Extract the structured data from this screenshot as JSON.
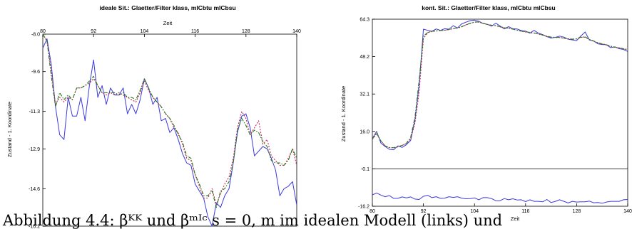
{
  "caption": "Abbildung 4.4:  βᴷᴷ  und  βᵐᴵᶜ  s = 0,  m im idealen Modell (links) und",
  "colors": {
    "raw": "#3a3adb",
    "filter1": "#cc2255",
    "filter2": "#1f7a1f",
    "axes": "#000000"
  },
  "chart_data": [
    {
      "type": "line",
      "title": "ideale Sit.: Glaetter/Filter klass,  mICbtu mICbsu",
      "xlabel": "Zeit",
      "ylabel": "Zustand - 1. Koordinate",
      "x_axis_position": "top",
      "xlim": [
        80,
        140
      ],
      "ylim": [
        -16.2,
        -8.0
      ],
      "xticks": [
        "80",
        "92",
        "104",
        "116",
        "128",
        "140"
      ],
      "yticks": [
        "-8.0",
        "-9.6",
        "-11.3",
        "-12.9",
        "-14.6",
        "-16.2"
      ],
      "x": [
        80,
        81,
        82,
        83,
        84,
        85,
        86,
        87,
        88,
        89,
        90,
        91,
        92,
        93,
        94,
        95,
        96,
        97,
        98,
        99,
        100,
        101,
        102,
        103,
        104,
        105,
        106,
        107,
        108,
        109,
        110,
        111,
        112,
        113,
        114,
        115,
        116,
        117,
        118,
        119,
        120,
        121,
        122,
        123,
        124,
        125,
        126,
        127,
        128,
        129,
        130,
        131,
        132,
        133,
        134,
        135,
        136,
        137,
        138,
        139,
        140
      ],
      "series": [
        {
          "values": [
            -8.6,
            -8.2,
            -9.3,
            -11.1,
            -12.3,
            -12.5,
            -10.7,
            -11.5,
            -11.5,
            -10.7,
            -11.7,
            -10.2,
            -9.1,
            -10.7,
            -10.2,
            -11.0,
            -10.3,
            -10.6,
            -10.6,
            -10.3,
            -11.4,
            -11.0,
            -11.4,
            -10.8,
            -9.9,
            -10.3,
            -11.0,
            -10.7,
            -11.7,
            -11.6,
            -12.2,
            -12.0,
            -12.5,
            -13.1,
            -13.5,
            -13.6,
            -14.4,
            -14.7,
            -15.0,
            -15.8,
            -16.2,
            -15.2,
            -15.4,
            -14.9,
            -14.6,
            -13.5,
            -12.2,
            -11.5,
            -11.4,
            -12.0,
            -13.2,
            -13.0,
            -12.8,
            -12.9,
            -13.3,
            -13.8,
            -14.9,
            -14.6,
            -14.5,
            -14.3,
            -15.3
          ]
        },
        {
          "values": [
            -8.0,
            -8.3,
            -9.6,
            -11.0,
            -10.7,
            -10.9,
            -10.7,
            -10.8,
            -10.3,
            -10.3,
            -10.2,
            -10.1,
            -9.9,
            -10.2,
            -10.5,
            -10.6,
            -10.5,
            -10.6,
            -10.5,
            -10.6,
            -10.7,
            -10.8,
            -10.9,
            -10.5,
            -10.0,
            -10.4,
            -10.7,
            -10.9,
            -11.1,
            -11.4,
            -11.6,
            -12.0,
            -12.2,
            -12.7,
            -13.3,
            -13.4,
            -14.0,
            -14.5,
            -15.0,
            -15.0,
            -14.6,
            -15.3,
            -14.8,
            -14.4,
            -14.1,
            -13.3,
            -12.0,
            -11.3,
            -11.6,
            -12.3,
            -12.0,
            -11.7,
            -12.7,
            -12.5,
            -13.2,
            -13.4,
            -13.6,
            -13.6,
            -13.3,
            -12.9,
            -13.6
          ]
        },
        {
          "values": [
            -8.0,
            -8.3,
            -9.8,
            -11.1,
            -10.5,
            -10.8,
            -10.6,
            -10.8,
            -10.3,
            -10.3,
            -10.2,
            -10.0,
            -9.8,
            -10.2,
            -10.5,
            -10.5,
            -10.5,
            -10.5,
            -10.6,
            -10.5,
            -10.7,
            -10.7,
            -10.8,
            -10.4,
            -9.9,
            -10.3,
            -10.7,
            -10.9,
            -11.1,
            -11.4,
            -11.6,
            -11.9,
            -12.3,
            -12.6,
            -13.2,
            -13.3,
            -14.0,
            -14.4,
            -14.9,
            -14.9,
            -14.7,
            -15.4,
            -14.7,
            -14.6,
            -14.3,
            -13.5,
            -12.1,
            -11.6,
            -11.9,
            -12.3,
            -12.1,
            -12.2,
            -12.6,
            -12.8,
            -13.4,
            -13.5,
            -13.5,
            -13.6,
            -13.4,
            -12.9,
            -13.3
          ]
        }
      ]
    },
    {
      "type": "line",
      "title": "kont. Sit.: Glaetter/Filter klass,  mICbtu mICbsu",
      "xlabel": "Zeit",
      "ylabel": "Zustand - 1. Koordinate",
      "x_axis_position": "bottom",
      "xlim": [
        80,
        140
      ],
      "ylim": [
        -16.2,
        64.3
      ],
      "xticks": [
        "80",
        "92",
        "104",
        "116",
        "128",
        "140"
      ],
      "yticks": [
        "64.3",
        "48.2",
        "32.1",
        "16.0",
        "-0.1",
        "-16.2"
      ],
      "reference_line": -0.1,
      "x": [
        80,
        81,
        82,
        83,
        84,
        85,
        86,
        87,
        88,
        89,
        90,
        91,
        92,
        93,
        94,
        95,
        96,
        97,
        98,
        99,
        100,
        101,
        102,
        103,
        104,
        105,
        106,
        107,
        108,
        109,
        110,
        111,
        112,
        113,
        114,
        115,
        116,
        117,
        118,
        119,
        120,
        121,
        122,
        123,
        124,
        125,
        126,
        127,
        128,
        129,
        130,
        131,
        132,
        133,
        134,
        135,
        136,
        137,
        138,
        139,
        140
      ],
      "series": [
        {
          "values": [
            13.0,
            16.0,
            11.0,
            9.5,
            8.3,
            8.1,
            9.8,
            9.1,
            10.3,
            12.1,
            21.0,
            36.0,
            60.0,
            59.5,
            59.1,
            60.1,
            59.5,
            60.2,
            60.0,
            61.5,
            60.5,
            62.3,
            63.0,
            63.7,
            63.9,
            63.4,
            62.5,
            62.1,
            61.3,
            62.6,
            61.4,
            60.1,
            61.1,
            60.2,
            60.1,
            59.4,
            59.2,
            58.3,
            59.5,
            58.3,
            57.7,
            56.8,
            56.2,
            56.5,
            57.0,
            56.6,
            55.7,
            55.4,
            55.1,
            57.1,
            58.8,
            55.3,
            54.9,
            53.7,
            53.4,
            53.3,
            52.1,
            52.4,
            51.6,
            51.3,
            50.4
          ]
        },
        {
          "values": [
            -11.3,
            -10.5,
            -11.4,
            -12.1,
            -11.6,
            -12.8,
            -12.8,
            -12.2,
            -12.6,
            -12.2,
            -13.1,
            -13.3,
            -11.9,
            -11.5,
            -12.5,
            -12.1,
            -12.8,
            -12.7,
            -12.1,
            -12.4,
            -12.1,
            -12.7,
            -13.0,
            -12.9,
            -12.6,
            -13.4,
            -12.5,
            -12.5,
            -12.9,
            -13.8,
            -13.8,
            -12.9,
            -13.4,
            -13.0,
            -13.5,
            -13.4,
            -14.2,
            -13.4,
            -14.1,
            -14.1,
            -14.3,
            -13.3,
            -14.6,
            -14.1,
            -13.4,
            -14.1,
            -14.8,
            -14.1,
            -14.4,
            -14.3,
            -14.3,
            -14.0,
            -14.7,
            -14.6,
            -14.9,
            -14.4,
            -14.1,
            -14.1,
            -14.1,
            -13.4,
            -13.3
          ]
        },
        {
          "values": [
            12.5,
            15.0,
            12.0,
            9.8,
            9.0,
            9.0,
            9.5,
            10.0,
            10.8,
            12.8,
            19.5,
            33.0,
            56.0,
            58.5,
            59.0,
            59.2,
            59.4,
            59.6,
            59.8,
            60.2,
            60.5,
            61.0,
            61.8,
            62.5,
            63.0,
            63.0,
            62.5,
            62.0,
            61.6,
            61.5,
            61.0,
            60.5,
            60.4,
            60.0,
            59.6,
            59.1,
            58.8,
            58.5,
            58.3,
            57.9,
            57.4,
            56.9,
            56.5,
            56.4,
            56.4,
            56.1,
            55.8,
            55.6,
            55.8,
            56.5,
            56.6,
            55.5,
            54.8,
            54.1,
            53.6,
            53.2,
            52.6,
            52.2,
            51.9,
            51.5,
            51.2
          ]
        },
        {
          "values": [
            12.8,
            15.4,
            11.9,
            9.8,
            9.1,
            9.0,
            9.3,
            10.0,
            10.9,
            13.5,
            22.0,
            38.0,
            57.0,
            58.6,
            59.1,
            59.3,
            59.4,
            59.6,
            59.9,
            60.3,
            60.6,
            61.1,
            61.9,
            62.6,
            63.1,
            63.1,
            62.6,
            62.1,
            61.7,
            61.6,
            61.1,
            60.6,
            60.4,
            60.0,
            59.6,
            59.2,
            58.9,
            58.6,
            58.4,
            58.0,
            57.5,
            57.0,
            56.6,
            56.5,
            56.5,
            56.2,
            55.9,
            55.7,
            55.9,
            56.6,
            56.7,
            55.6,
            54.9,
            54.2,
            53.7,
            53.3,
            52.7,
            52.3,
            52.0,
            51.6,
            51.3
          ]
        }
      ]
    }
  ]
}
